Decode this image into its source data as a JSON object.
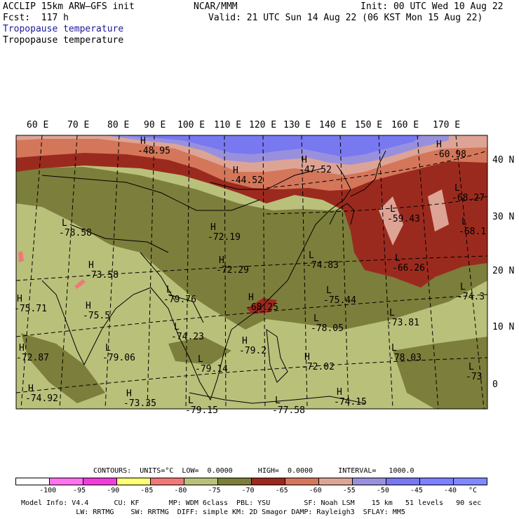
{
  "header": {
    "model": "ACCLIP 15km ARW–GFS init",
    "org": "NCAR/MMM",
    "init": "Init: 00 UTC Wed 10 Aug 22",
    "fcst": "Fcst:  117 h",
    "valid": "Valid: 21 UTC Sun 14 Aug 22 (06 KST Mon 15 Aug 22)",
    "field_blue": "Tropopause temperature",
    "field_black": "Tropopause temperature"
  },
  "lon_labels": [
    "60 E",
    "70 E",
    "80 E",
    "90 E",
    "100 E",
    "110 E",
    "120 E",
    "130 E",
    "140 E",
    "150 E",
    "160 E",
    "170 E"
  ],
  "lat_labels": [
    "40 N",
    "30 N",
    "20 N",
    "10 N",
    "0"
  ],
  "extrema": [
    {
      "type": "H",
      "value": "-48.95"
    },
    {
      "type": "H",
      "value": "-47.52"
    },
    {
      "type": "H",
      "value": "-60.98"
    },
    {
      "type": "H",
      "value": "-44.52"
    },
    {
      "type": "L",
      "value": "-68.27"
    },
    {
      "type": "L",
      "value": "-59.43"
    },
    {
      "type": "L",
      "value": "-68.1"
    },
    {
      "type": "L",
      "value": "-78.58"
    },
    {
      "type": "H",
      "value": "-72.19"
    },
    {
      "type": "L",
      "value": "-66.26"
    },
    {
      "type": "H",
      "value": "-73.58"
    },
    {
      "type": "H",
      "value": "-72.29"
    },
    {
      "type": "L",
      "value": "-74.83"
    },
    {
      "type": "H",
      "value": "-75.71"
    },
    {
      "type": "L",
      "value": "-79.76"
    },
    {
      "type": "H",
      "value": "-68.25"
    },
    {
      "type": "L",
      "value": "-75.44"
    },
    {
      "type": "L",
      "value": "-74.3"
    },
    {
      "type": "H",
      "value": "-75.5"
    },
    {
      "type": "L",
      "value": "-73.81"
    },
    {
      "type": "L",
      "value": "-78.05"
    },
    {
      "type": "L",
      "value": "-74.23"
    },
    {
      "type": "H",
      "value": "-72.87"
    },
    {
      "type": "L",
      "value": "-79.06"
    },
    {
      "type": "L",
      "value": "-78.03"
    },
    {
      "type": "H",
      "value": "-72.02"
    },
    {
      "type": "L",
      "value": "-79.14"
    },
    {
      "type": "L",
      "value": "-73"
    },
    {
      "type": "H",
      "value": "-74.92"
    },
    {
      "type": "H",
      "value": "-73.35"
    },
    {
      "type": "L",
      "value": "-79.15"
    },
    {
      "type": "L",
      "value": "-77.58"
    },
    {
      "type": "H",
      "value": "-74.15"
    },
    {
      "type": "H",
      "value": "-79.2"
    }
  ],
  "contours": {
    "line": "CONTOURS:  UNITS=°C  LOW=  0.0000      HIGH=  0.0000      INTERVAL=   1000.0"
  },
  "colorbar": {
    "colors": [
      "#ffffff",
      "#ff73f0",
      "#f03cd8",
      "#ffff78",
      "#f07878",
      "#b9c07a",
      "#7c7e3b",
      "#9b2a1e",
      "#d4765a",
      "#dda496",
      "#9990dd",
      "#7878f0",
      "#7d80ff",
      "#8088ff"
    ],
    "ticks": [
      "-100",
      "-95",
      "-90",
      "-85",
      "-80",
      "-75",
      "-70",
      "-65",
      "-60",
      "-55",
      "-50",
      "-45",
      "-40",
      "°C"
    ]
  },
  "footer": {
    "line1": "Model Info: V4.4      CU: KF       MP: WDM 6class  PBL: YSU        SF: Noah LSM    15 km   51 levels   90 sec",
    "line2": "             LW: RRTMG    SW: RRTMG  DIFF: simple KM: 2D Smagor DAMP: Rayleigh3  SFLAY: MM5"
  }
}
